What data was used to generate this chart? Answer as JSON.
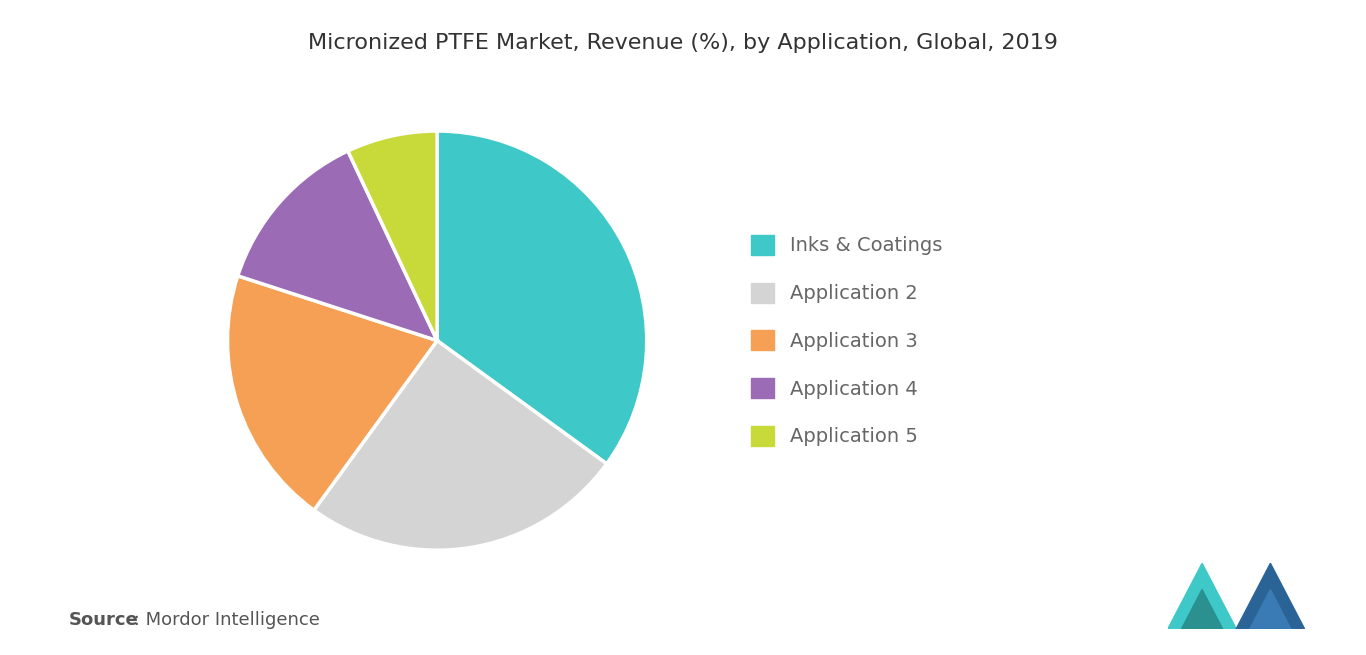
{
  "title": "Micronized PTFE Market, Revenue (%), by Application, Global, 2019",
  "slices": [
    {
      "label": "Inks & Coatings",
      "value": 35,
      "color": "#3ec8c8"
    },
    {
      "label": "Application 2",
      "value": 25,
      "color": "#d4d4d4"
    },
    {
      "label": "Application 3",
      "value": 20,
      "color": "#f5a054"
    },
    {
      "label": "Application 4",
      "value": 13,
      "color": "#9b6bb5"
    },
    {
      "label": "Application 5",
      "value": 7,
      "color": "#c8d93a"
    }
  ],
  "source_bold": "Source",
  "source_text": " : Mordor Intelligence",
  "background_color": "#ffffff",
  "title_fontsize": 16,
  "legend_fontsize": 14,
  "source_fontsize": 13,
  "startangle": 90
}
